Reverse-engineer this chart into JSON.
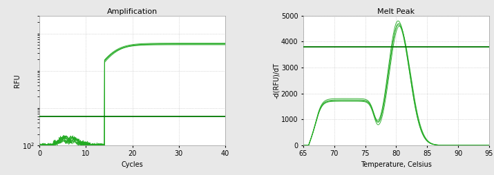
{
  "amp_title": "Amplification",
  "amp_xlabel": "Cycles",
  "amp_ylabel": "RFU",
  "amp_xlim": [
    0,
    40
  ],
  "amp_ylim_log": [
    100,
    300000
  ],
  "amp_threshold": 600,
  "amp_threshold_color": "#007700",
  "amp_grid_color": "#bbbbbb",
  "amp_line_color": "#22aa22",
  "amp_num_curves": 4,
  "melt_title": "Melt Peak",
  "melt_xlabel": "Temperature, Celsius",
  "melt_ylabel": "-d(RFU)/dT",
  "melt_xlim": [
    65,
    95
  ],
  "melt_ylim": [
    0,
    5000
  ],
  "melt_threshold": 3800,
  "melt_threshold_color": "#007700",
  "melt_grid_color": "#bbbbbb",
  "melt_line_color": "#22aa22",
  "melt_num_curves": 4,
  "background_color": "#e8e8e8",
  "plot_bg_color": "#ffffff"
}
